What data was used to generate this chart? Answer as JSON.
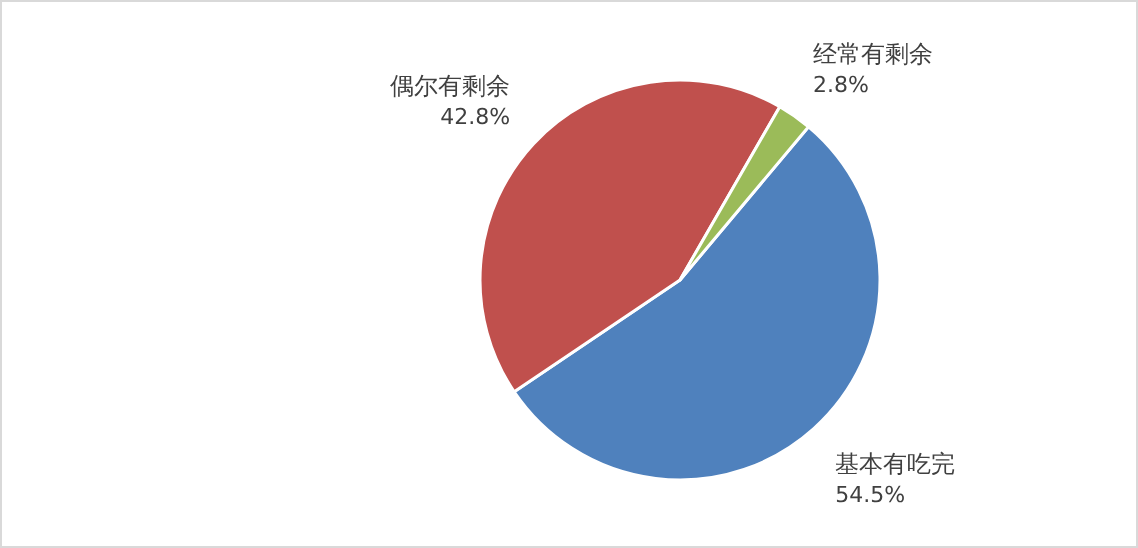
{
  "chart_data": {
    "type": "pie",
    "categories": [
      "基本有吃完",
      "偶尔有剩余",
      "经常有剩余"
    ],
    "values": [
      54.5,
      42.8,
      2.8
    ],
    "colors": [
      "#4f81bd",
      "#c0504d",
      "#9bbb59"
    ],
    "value_labels": [
      "54.5%",
      "42.8%",
      "2.8%"
    ]
  }
}
